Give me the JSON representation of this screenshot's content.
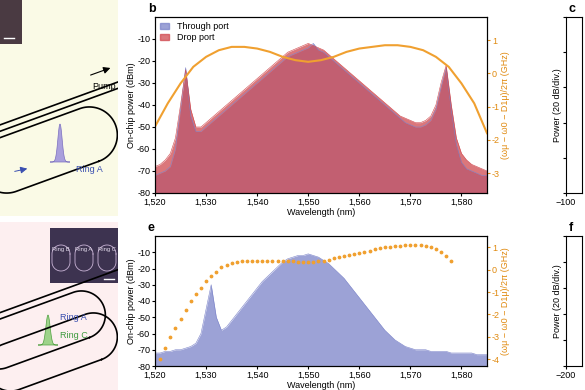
{
  "chart_data": [
    {
      "panel_label": "b",
      "type": "line",
      "xlabel": "Wavelength (nm)",
      "ylabel": "On-chip power (dBm)",
      "y2label": "(ωμ − ω0 − D1μ)/2π (GHz)",
      "xlim": [
        1520,
        1585
      ],
      "xticks": [
        {
          "value": 1520,
          "label": "1,520"
        },
        {
          "value": 1530,
          "label": "1,530"
        },
        {
          "value": 1540,
          "label": "1,540"
        },
        {
          "value": 1550,
          "label": "1,550"
        },
        {
          "value": 1560,
          "label": "1,560"
        },
        {
          "value": 1570,
          "label": "1,570"
        },
        {
          "value": 1580,
          "label": "1,580"
        }
      ],
      "ylim": [
        -80,
        0
      ],
      "yticks": [
        -80,
        -70,
        -60,
        -50,
        -40,
        -30,
        -20,
        -10
      ],
      "y2lim": [
        -3.6,
        1.7
      ],
      "y2ticks": [
        -3,
        -2,
        -1,
        0,
        1
      ],
      "legend": "upper left",
      "series": [
        {
          "name": "Through port",
          "type": "area",
          "color": "#7b83c9",
          "x": [
            1520,
            1521,
            1522,
            1523,
            1524,
            1525,
            1526,
            1527,
            1528,
            1529,
            1530,
            1531,
            1532,
            1533,
            1534,
            1535,
            1536,
            1537,
            1538,
            1539,
            1540,
            1541,
            1542,
            1543,
            1544,
            1545,
            1546,
            1547,
            1548,
            1549,
            1550,
            1551,
            1552,
            1553,
            1554,
            1555,
            1556,
            1557,
            1558,
            1559,
            1560,
            1561,
            1562,
            1563,
            1564,
            1565,
            1566,
            1567,
            1568,
            1569,
            1570,
            1571,
            1572,
            1573,
            1574,
            1575,
            1576,
            1577,
            1578,
            1579,
            1580,
            1581,
            1582,
            1583,
            1584,
            1585
          ],
          "values": [
            -72,
            -71,
            -70,
            -68,
            -60,
            -42,
            -23,
            -45,
            -52,
            -52,
            -50,
            -48,
            -46,
            -44,
            -42,
            -40,
            -38,
            -36,
            -34,
            -32,
            -30,
            -28,
            -26,
            -24,
            -22,
            -20,
            -18,
            -17,
            -16,
            -15,
            -14,
            -12,
            -15,
            -16,
            -18,
            -20,
            -22,
            -24,
            -26,
            -28,
            -30,
            -32,
            -34,
            -36,
            -38,
            -40,
            -42,
            -44,
            -46,
            -48,
            -49,
            -50,
            -50,
            -49,
            -47,
            -42,
            -32,
            -23,
            -42,
            -58,
            -66,
            -69,
            -70,
            -71,
            -72,
            -72
          ]
        },
        {
          "name": "Drop port",
          "type": "area",
          "color": "#d0494f",
          "x": [
            1520,
            1521,
            1522,
            1523,
            1524,
            1525,
            1526,
            1527,
            1528,
            1529,
            1530,
            1531,
            1532,
            1533,
            1534,
            1535,
            1536,
            1537,
            1538,
            1539,
            1540,
            1541,
            1542,
            1543,
            1544,
            1545,
            1546,
            1547,
            1548,
            1549,
            1550,
            1551,
            1552,
            1553,
            1554,
            1555,
            1556,
            1557,
            1558,
            1559,
            1560,
            1561,
            1562,
            1563,
            1564,
            1565,
            1566,
            1567,
            1568,
            1569,
            1570,
            1571,
            1572,
            1573,
            1574,
            1575,
            1576,
            1577,
            1578,
            1579,
            1580,
            1581,
            1582,
            1583,
            1584,
            1585
          ],
          "values": [
            -68,
            -67,
            -65,
            -62,
            -55,
            -40,
            -24,
            -42,
            -50,
            -50,
            -48,
            -46,
            -44,
            -42,
            -40,
            -38,
            -36,
            -34,
            -32,
            -30,
            -28,
            -26,
            -24,
            -22,
            -20,
            -18,
            -16,
            -15,
            -14,
            -13,
            -12,
            -13,
            -14,
            -15,
            -17,
            -19,
            -21,
            -23,
            -25,
            -27,
            -29,
            -31,
            -33,
            -35,
            -37,
            -39,
            -41,
            -43,
            -45,
            -46,
            -47,
            -48,
            -48,
            -47,
            -45,
            -40,
            -30,
            -22,
            -40,
            -55,
            -62,
            -65,
            -67,
            -68,
            -69,
            -70
          ]
        },
        {
          "type": "line",
          "axis": "y2",
          "color": "#f0a030",
          "x": [
            1520,
            1522.5,
            1525,
            1527.5,
            1530,
            1532.5,
            1535,
            1537.5,
            1540,
            1542.5,
            1545,
            1547.5,
            1550,
            1552.5,
            1555,
            1557.5,
            1560,
            1562.5,
            1565,
            1567.5,
            1570,
            1572.5,
            1575,
            1577.5,
            1580,
            1582.5,
            1585
          ],
          "values": [
            -1.6,
            -0.9,
            -0.3,
            0.2,
            0.5,
            0.7,
            0.8,
            0.8,
            0.75,
            0.65,
            0.5,
            0.4,
            0.35,
            0.4,
            0.5,
            0.65,
            0.75,
            0.8,
            0.85,
            0.85,
            0.8,
            0.7,
            0.5,
            0.2,
            -0.3,
            -0.9,
            -1.8
          ]
        }
      ]
    },
    {
      "panel_label": "c",
      "type": "line",
      "ylabel": "Power (20 dB/div.)",
      "xlim": [
        -100,
        100
      ],
      "xticks": [
        {
          "value": -100,
          "label": "−100"
        }
      ],
      "ylim": [
        -100,
        0
      ],
      "yticks": [
        -100,
        -80,
        -60,
        -40,
        -20,
        0
      ],
      "tick_labels": "x"
    },
    {
      "panel_label": "e",
      "type": "line",
      "xlabel": "Wavelength (nm)",
      "ylabel": "On-chip power (dBm)",
      "y2label": "(ωμ − ω0 − D1μ)/2π (GHz)",
      "xlim": [
        1520,
        1585
      ],
      "xticks": [
        {
          "value": 1520,
          "label": "1,520"
        },
        {
          "value": 1530,
          "label": "1,530"
        },
        {
          "value": 1540,
          "label": "1,540"
        },
        {
          "value": 1550,
          "label": "1,550"
        },
        {
          "value": 1560,
          "label": "1,560"
        },
        {
          "value": 1570,
          "label": "1,570"
        },
        {
          "value": 1580,
          "label": "1,580"
        }
      ],
      "ylim": [
        -80,
        0
      ],
      "yticks": [
        -80,
        -70,
        -60,
        -50,
        -40,
        -30,
        -20,
        -10
      ],
      "y2lim": [
        -4.3,
        1.5
      ],
      "y2ticks": [
        -4,
        -3,
        -2,
        -1,
        0,
        1
      ],
      "series": [
        {
          "type": "area",
          "color": "#7b83c9",
          "x": [
            1520,
            1521,
            1522,
            1523,
            1524,
            1525,
            1526,
            1527,
            1528,
            1529,
            1530,
            1531,
            1532,
            1533,
            1534,
            1535,
            1536,
            1537,
            1538,
            1539,
            1540,
            1541,
            1542,
            1543,
            1544,
            1545,
            1546,
            1547,
            1548,
            1549,
            1550,
            1551,
            1552,
            1553,
            1554,
            1555,
            1556,
            1557,
            1558,
            1559,
            1560,
            1561,
            1562,
            1563,
            1564,
            1565,
            1566,
            1567,
            1568,
            1569,
            1570,
            1571,
            1572,
            1573,
            1574,
            1575,
            1576,
            1577,
            1578,
            1579,
            1580,
            1581,
            1582,
            1583,
            1584,
            1585
          ],
          "values": [
            -72,
            -72,
            -71,
            -71,
            -70,
            -70,
            -69,
            -68,
            -66,
            -60,
            -45,
            -30,
            -50,
            -58,
            -56,
            -52,
            -48,
            -44,
            -40,
            -36,
            -32,
            -28,
            -25,
            -22,
            -19,
            -16,
            -14,
            -13,
            -12,
            -12,
            -11,
            -12,
            -13,
            -15,
            -17,
            -20,
            -23,
            -26,
            -30,
            -34,
            -38,
            -42,
            -46,
            -50,
            -54,
            -58,
            -61,
            -64,
            -66,
            -68,
            -69,
            -70,
            -70,
            -70,
            -71,
            -71,
            -71,
            -71,
            -72,
            -72,
            -72,
            -72,
            -72,
            -73,
            -73,
            -73
          ]
        },
        {
          "type": "scatter",
          "marker": "o",
          "axis": "y2",
          "color": "#f0a030",
          "x": [
            1521,
            1522,
            1523,
            1524,
            1525,
            1526,
            1527,
            1528,
            1529,
            1530,
            1531,
            1532,
            1533,
            1534,
            1535,
            1536,
            1537,
            1538,
            1539,
            1540,
            1541,
            1542,
            1543,
            1544,
            1545,
            1546,
            1547,
            1548,
            1549,
            1550,
            1551,
            1552,
            1553,
            1554,
            1555,
            1556,
            1557,
            1558,
            1559,
            1560,
            1561,
            1562,
            1563,
            1564,
            1565,
            1566,
            1567,
            1568,
            1569,
            1570,
            1571,
            1572,
            1573,
            1574,
            1575,
            1576,
            1577,
            1578
          ],
          "values": [
            -4.0,
            -3.5,
            -3.0,
            -2.6,
            -2.2,
            -1.8,
            -1.4,
            -1.1,
            -0.8,
            -0.5,
            -0.3,
            -0.1,
            0.1,
            0.2,
            0.3,
            0.35,
            0.4,
            0.4,
            0.4,
            0.4,
            0.4,
            0.4,
            0.4,
            0.4,
            0.4,
            0.4,
            0.4,
            0.35,
            0.35,
            0.35,
            0.35,
            0.4,
            0.4,
            0.45,
            0.5,
            0.55,
            0.6,
            0.65,
            0.7,
            0.75,
            0.8,
            0.85,
            0.9,
            0.95,
            1.0,
            1.0,
            1.05,
            1.05,
            1.1,
            1.1,
            1.1,
            1.1,
            1.05,
            1.0,
            0.9,
            0.8,
            0.6,
            0.4
          ]
        }
      ]
    },
    {
      "panel_label": "f",
      "type": "line",
      "ylabel": "Power (20 dB/div.)",
      "xlim": [
        -200,
        200
      ],
      "xticks": [
        {
          "value": -200,
          "label": "−200"
        }
      ],
      "ylim": [
        -100,
        0
      ],
      "yticks": [
        -100,
        -80,
        -60,
        -40,
        -20,
        0
      ],
      "tick_labels": "x"
    }
  ],
  "diagrams": {
    "top": {
      "pump": "Pump",
      "ring": "Ring A"
    },
    "bottom": {
      "inset_rings": [
        "Ring B",
        "Ring A",
        "Ring C"
      ],
      "rings": [
        "Ring A",
        "Ring C"
      ]
    }
  }
}
